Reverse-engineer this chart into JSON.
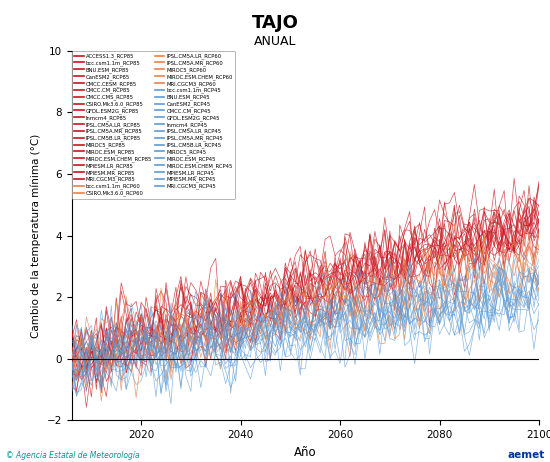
{
  "title": "TAJO",
  "subtitle": "ANUAL",
  "ylabel": "Cambio de la temperatura mínima (°C)",
  "xlabel": "Año",
  "ylim": [
    -2,
    10
  ],
  "xlim": [
    2006,
    2100
  ],
  "yticks": [
    -2,
    0,
    2,
    4,
    6,
    8,
    10
  ],
  "xticks": [
    2020,
    2040,
    2060,
    2080,
    2100
  ],
  "rcp85_color": "#C8141E",
  "rcp60_color": "#E8824A",
  "rcp45_color": "#5B9BD5",
  "legend_left": [
    [
      "ACCESS1.3_RCP85",
      "#C8141E"
    ],
    [
      "bcc.csm1.1m_RCP85",
      "#C8141E"
    ],
    [
      "BNU.ESM_RCP85",
      "#C8141E"
    ],
    [
      "CanESM2_RCP85",
      "#C8141E"
    ],
    [
      "CMCC.CESM_RCP85",
      "#C8141E"
    ],
    [
      "CMCC.CM_RCP85",
      "#C8141E"
    ],
    [
      "CMCC.CMS_RCP85",
      "#C8141E"
    ],
    [
      "CSIRO.Mk3.6.0_RCP85",
      "#C8141E"
    ],
    [
      "GFDL.ESM2G_RCP85",
      "#C8141E"
    ],
    [
      "Inmcm4_RCP85",
      "#C8141E"
    ],
    [
      "IPSL.CM5A.LR_RCP85",
      "#C8141E"
    ],
    [
      "IPSL.CM5A.MR_RCP85",
      "#C8141E"
    ],
    [
      "IPSL.CM5B.LR_RCP85",
      "#C8141E"
    ],
    [
      "MIROC5_RCP85",
      "#C8141E"
    ],
    [
      "MIROC.ESM_RCP85",
      "#C8141E"
    ],
    [
      "MIROC.ESM.CHEM_RCP85",
      "#C8141E"
    ],
    [
      "MPIESM.LR_RCP85",
      "#C8141E"
    ],
    [
      "MPIESM.MR_RCP85",
      "#C8141E"
    ],
    [
      "MRI.CGCM3_RCP85",
      "#C8141E"
    ],
    [
      "bcc.csm1.1m_RCP60",
      "#E8824A"
    ],
    [
      "CSIRO.Mk3.6.0_RCP60",
      "#E8824A"
    ]
  ],
  "legend_right": [
    [
      "IPSL.CM5A.LR_RCP60",
      "#E8824A"
    ],
    [
      "IPSL.CM5A.MR_RCP60",
      "#E8824A"
    ],
    [
      "MIROC5_RCP60",
      "#E8824A"
    ],
    [
      "MIROC.ESM.CHEM_RCP60",
      "#E8824A"
    ],
    [
      "MRI.CGCM3_RCP60",
      "#E8824A"
    ],
    [
      "bcc.csm1.1m_RCP45",
      "#5B9BD5"
    ],
    [
      "BNU.ESM_RCP45",
      "#5B9BD5"
    ],
    [
      "CanESM2_RCP45",
      "#5B9BD5"
    ],
    [
      "CMCC.CM_RCP45",
      "#5B9BD5"
    ],
    [
      "GFDL.ESM2G_RCP45",
      "#5B9BD5"
    ],
    [
      "Inmcm4_RCP45",
      "#5B9BD5"
    ],
    [
      "IPSL.CM5A.LR_RCP45",
      "#5B9BD5"
    ],
    [
      "IPSL.CM5A.MR_RCP45",
      "#5B9BD5"
    ],
    [
      "IPSL.CM5B.LR_RCP45",
      "#5B9BD5"
    ],
    [
      "MIROC5_RCP45",
      "#5B9BD5"
    ],
    [
      "MIROC.ESM_RCP45",
      "#5B9BD5"
    ],
    [
      "MIROC.ESM.CHEM_RCP45",
      "#5B9BD5"
    ],
    [
      "MPIESM.LR_RCP45",
      "#5B9BD5"
    ],
    [
      "MPIESM.MR_RCP45",
      "#5B9BD5"
    ],
    [
      "MRI.CGCM3_RCP45",
      "#5B9BD5"
    ]
  ],
  "start_year": 2006,
  "end_year": 2100,
  "footer_left": "© Agencia Estatal de Meteorología",
  "rcp85_trend": 0.046,
  "rcp60_trend": 0.032,
  "rcp45_trend": 0.024,
  "noise_std": 0.6
}
